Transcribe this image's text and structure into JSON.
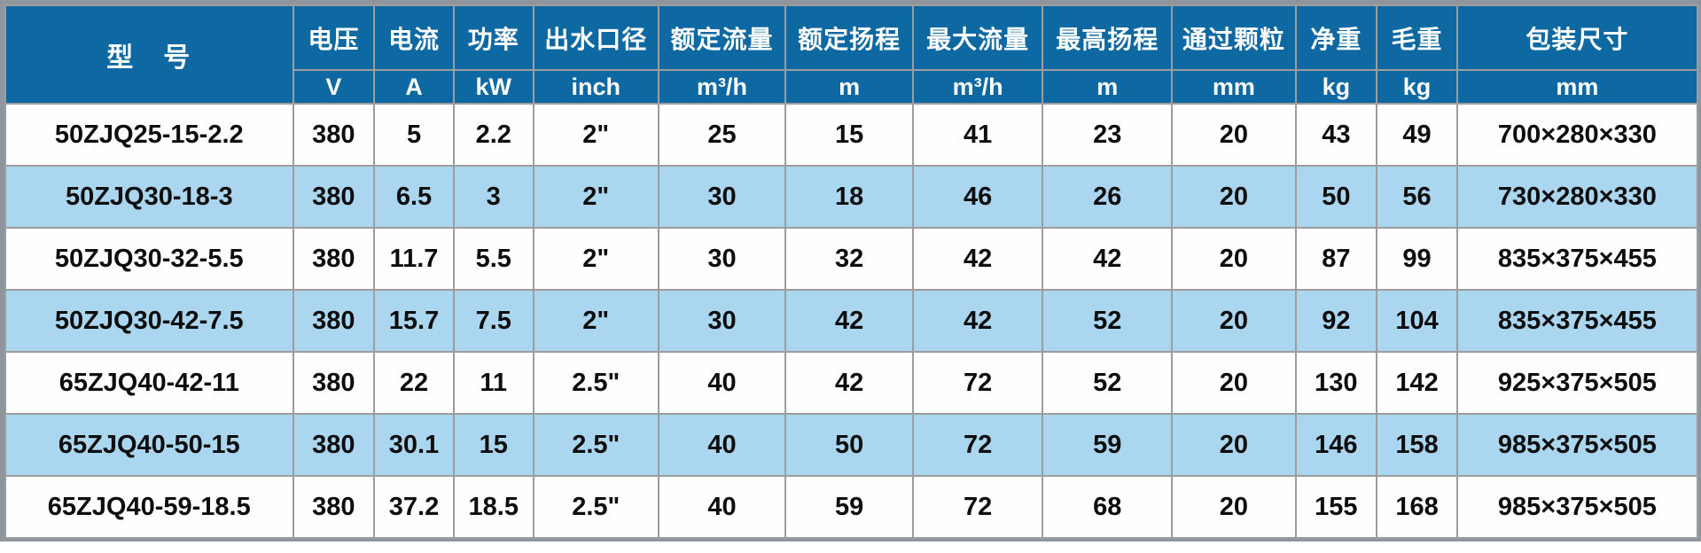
{
  "table": {
    "title": "pump-specification-table",
    "colors": {
      "header_background": "#0e68a2",
      "header_text": "#ffffff",
      "stripe_row_background": "#aad6ef",
      "plain_row_background": "#fefefe",
      "grid_line": "#9d9d9d",
      "outer_border": "#8e959c",
      "data_text": "#0d0d0d"
    },
    "columns": [
      {
        "key": "model",
        "label": "型　号",
        "unit": ""
      },
      {
        "key": "voltage",
        "label": "电压",
        "unit": "V"
      },
      {
        "key": "current",
        "label": "电流",
        "unit": "A"
      },
      {
        "key": "power",
        "label": "功率",
        "unit": "kW"
      },
      {
        "key": "outlet-diameter",
        "label": "出水口径",
        "unit": "inch"
      },
      {
        "key": "rated-flow",
        "label": "额定流量",
        "unit": "m³/h"
      },
      {
        "key": "rated-head",
        "label": "额定扬程",
        "unit": "m"
      },
      {
        "key": "max-flow",
        "label": "最大流量",
        "unit": "m³/h"
      },
      {
        "key": "max-head",
        "label": "最高扬程",
        "unit": "m"
      },
      {
        "key": "particle-size",
        "label": "通过颗粒",
        "unit": "mm"
      },
      {
        "key": "net-weight",
        "label": "净重",
        "unit": "kg"
      },
      {
        "key": "gross-weight",
        "label": "毛重",
        "unit": "kg"
      },
      {
        "key": "package-size",
        "label": "包装尺寸",
        "unit": "mm"
      }
    ],
    "rows": [
      [
        "50ZJQ25-15-2.2",
        "380",
        "5",
        "2.2",
        "2\"",
        "25",
        "15",
        "41",
        "23",
        "20",
        "43",
        "49",
        "700×280×330"
      ],
      [
        "50ZJQ30-18-3",
        "380",
        "6.5",
        "3",
        "2\"",
        "30",
        "18",
        "46",
        "26",
        "20",
        "50",
        "56",
        "730×280×330"
      ],
      [
        "50ZJQ30-32-5.5",
        "380",
        "11.7",
        "5.5",
        "2\"",
        "30",
        "32",
        "42",
        "42",
        "20",
        "87",
        "99",
        "835×375×455"
      ],
      [
        "50ZJQ30-42-7.5",
        "380",
        "15.7",
        "7.5",
        "2\"",
        "30",
        "42",
        "42",
        "52",
        "20",
        "92",
        "104",
        "835×375×455"
      ],
      [
        "65ZJQ40-42-11",
        "380",
        "22",
        "11",
        "2.5\"",
        "40",
        "42",
        "72",
        "52",
        "20",
        "130",
        "142",
        "925×375×505"
      ],
      [
        "65ZJQ40-50-15",
        "380",
        "30.1",
        "15",
        "2.5\"",
        "40",
        "50",
        "72",
        "59",
        "20",
        "146",
        "158",
        "985×375×505"
      ],
      [
        "65ZJQ40-59-18.5",
        "380",
        "37.2",
        "18.5",
        "2.5\"",
        "40",
        "59",
        "72",
        "68",
        "20",
        "155",
        "168",
        "985×375×505"
      ]
    ]
  }
}
